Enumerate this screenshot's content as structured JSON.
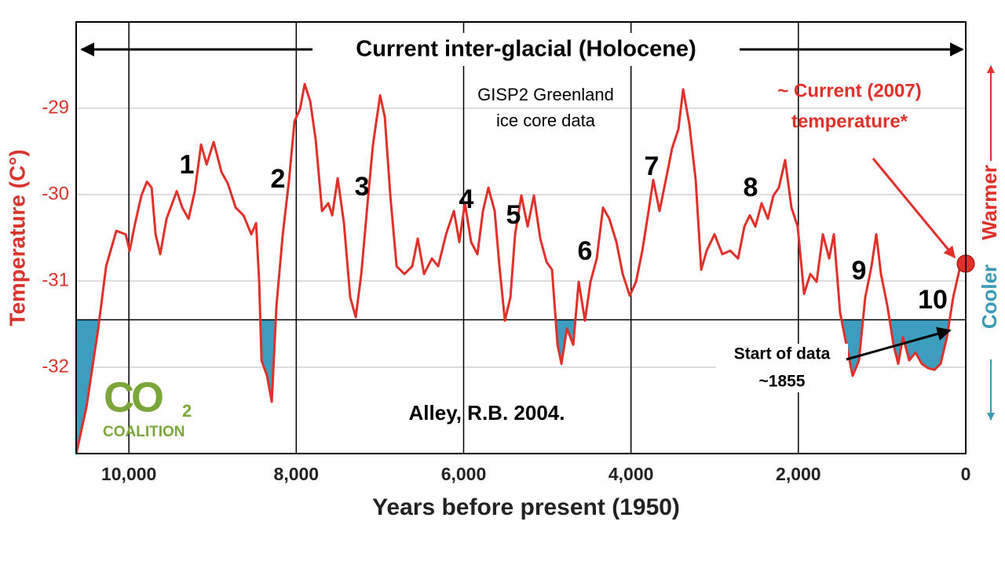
{
  "chart_data": {
    "type": "line",
    "title": "Current inter-glacial (Holocene)",
    "x_label": "Years before present (1950)",
    "y_label": "Temperature (C°)",
    "side_labels": [
      "Warmer",
      "Cooler"
    ],
    "annotations": [
      "GISP2 Greenland",
      "ice core data",
      "~ Current (2007)",
      "temperature*",
      "Start of data",
      "~1855",
      "Alley, R.B. 2004."
    ],
    "peak_labels": [
      "1",
      "2",
      "3",
      "4",
      "5",
      "6",
      "7",
      "8",
      "9",
      "10"
    ],
    "logo": {
      "text": "CO",
      "subscript": "2",
      "caption": "COALITION"
    },
    "color": "#e0302a",
    "fill_color": "#3d9dbf",
    "reference_line": -31.45,
    "xlim": [
      10630,
      0
    ],
    "ylim": [
      -33,
      -28
    ],
    "xticks": [
      {
        "value": 10000,
        "label": "10,000"
      },
      {
        "value": 8000,
        "label": "8,000"
      },
      {
        "value": 6000,
        "label": "6,000"
      },
      {
        "value": 4000,
        "label": "4,000"
      },
      {
        "value": 2000,
        "label": "2,000"
      },
      0
    ],
    "yticks": [
      -29,
      -30,
      -31,
      -32
    ],
    "grid": true,
    "x": [
      10628,
      10507,
      10366,
      10272,
      10150,
      10038,
      9991,
      9925,
      9850,
      9784,
      9728,
      9681,
      9625,
      9550,
      9428,
      9362,
      9287,
      9212,
      9137,
      9071,
      8987,
      8893,
      8818,
      8724,
      8630,
      8537,
      8480,
      8443,
      8415,
      8349,
      8293,
      8236,
      8161,
      8086,
      8021,
      7955,
      7899,
      7833,
      7767,
      7692,
      7617,
      7570,
      7505,
      7430,
      7355,
      7289,
      7223,
      7148,
      7083,
      6998,
      6942,
      6876,
      6801,
      6707,
      6614,
      6548,
      6473,
      6379,
      6304,
      6210,
      6116,
      6051,
      5985,
      5910,
      5835,
      5769,
      5704,
      5629,
      5572,
      5507,
      5441,
      5385,
      5310,
      5235,
      5160,
      5084,
      5009,
      4944,
      4878,
      4831,
      4765,
      4690,
      4625,
      4550,
      4484,
      4409,
      4334,
      4259,
      4174,
      4099,
      4015,
      3940,
      3865,
      3790,
      3734,
      3659,
      3584,
      3508,
      3433,
      3377,
      3302,
      3227,
      3161,
      3096,
      3002,
      2908,
      2814,
      2720,
      2645,
      2580,
      2514,
      2439,
      2364,
      2298,
      2233,
      2158,
      2083,
      2008,
      1932,
      1857,
      1782,
      1707,
      1632,
      1576,
      1501,
      1426,
      1351,
      1276,
      1201,
      1126,
      1069,
      1013,
      938,
      863,
      807,
      750,
      675,
      600,
      525,
      450,
      375,
      300,
      225,
      150,
      75,
      0
    ],
    "values": [
      -33.0,
      -32.46,
      -31.55,
      -30.83,
      -30.42,
      -30.46,
      -30.65,
      -30.33,
      -30.01,
      -29.85,
      -29.92,
      -30.46,
      -30.69,
      -30.28,
      -29.96,
      -30.15,
      -30.28,
      -29.96,
      -29.42,
      -29.65,
      -29.39,
      -29.74,
      -29.87,
      -30.15,
      -30.24,
      -30.46,
      -30.33,
      -31.01,
      -31.92,
      -32.1,
      -32.4,
      -31.28,
      -30.46,
      -29.83,
      -29.15,
      -29.01,
      -28.72,
      -28.92,
      -29.37,
      -30.19,
      -30.1,
      -30.24,
      -29.81,
      -30.33,
      -31.19,
      -31.42,
      -30.92,
      -30.1,
      -29.42,
      -28.85,
      -29.1,
      -30.01,
      -30.83,
      -30.92,
      -30.83,
      -30.51,
      -30.92,
      -30.74,
      -30.83,
      -30.46,
      -30.19,
      -30.55,
      -30.1,
      -30.55,
      -30.69,
      -30.19,
      -29.92,
      -30.19,
      -30.83,
      -31.46,
      -31.19,
      -30.46,
      -30.01,
      -30.37,
      -30.01,
      -30.51,
      -30.78,
      -30.87,
      -31.74,
      -31.96,
      -31.55,
      -31.74,
      -31.01,
      -31.46,
      -31.01,
      -30.74,
      -30.15,
      -30.28,
      -30.55,
      -30.92,
      -31.17,
      -31.01,
      -30.65,
      -30.19,
      -29.83,
      -30.19,
      -29.83,
      -29.46,
      -29.24,
      -28.78,
      -29.19,
      -29.83,
      -30.87,
      -30.65,
      -30.46,
      -30.69,
      -30.65,
      -30.74,
      -30.37,
      -30.24,
      -30.37,
      -30.1,
      -30.28,
      -30.01,
      -29.92,
      -29.6,
      -30.15,
      -30.37,
      -31.15,
      -30.92,
      -31.01,
      -30.46,
      -30.74,
      -30.46,
      -31.37,
      -31.74,
      -32.1,
      -31.92,
      -31.19,
      -30.83,
      -30.46,
      -30.92,
      -31.28,
      -31.74,
      -31.96,
      -31.65,
      -31.92,
      -31.83,
      -31.96,
      -32.01,
      -32.03,
      -31.96,
      -31.65,
      -31.19,
      -30.87,
      -30.8
    ]
  }
}
